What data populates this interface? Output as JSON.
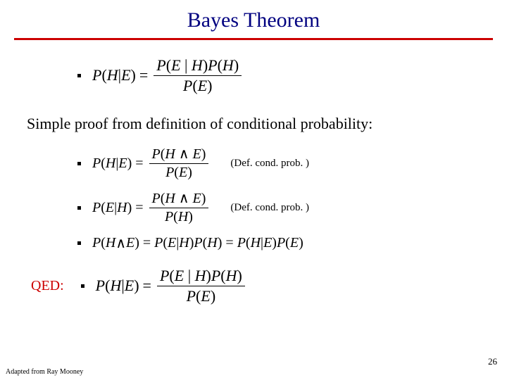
{
  "title": "Bayes Theorem",
  "colors": {
    "title": "#000080",
    "rule": "#cc0000",
    "qed": "#cc0000",
    "text": "#000000",
    "background": "#ffffff"
  },
  "typography": {
    "title_fontsize": 30,
    "body_fontsize": 22,
    "formula_fontsize_main": 22,
    "formula_fontsize_step": 20,
    "annotation_fontsize": 15,
    "footer_fontsize": 10,
    "pagenum_fontsize": 13,
    "font_family": "Times New Roman"
  },
  "formula_main": {
    "lhs_func": "P",
    "lhs_arg1": "H",
    "lhs_sep": " | ",
    "lhs_arg2": "E",
    "eq": "=",
    "num_f1": "P",
    "num_a1a": "E",
    "num_a1s": " | ",
    "num_a1b": "H",
    "num_f2": "P",
    "num_a2": "H",
    "den_f": "P",
    "den_a": "E"
  },
  "proof_text": "Simple proof from definition of conditional probability:",
  "step1": {
    "lhs_func": "P",
    "lhs_a": "H",
    "lhs_sep": " | ",
    "lhs_b": "E",
    "eq": "=",
    "num_f": "P",
    "num_a": "H",
    "num_op": " ∧ ",
    "num_b": "E",
    "den_f": "P",
    "den_a": "E",
    "annot": "(Def. cond. prob. )"
  },
  "step2": {
    "lhs_func": "P",
    "lhs_a": "E",
    "lhs_sep": " | ",
    "lhs_b": "H",
    "eq": "=",
    "num_f": "P",
    "num_a": "H",
    "num_op": " ∧ ",
    "num_b": "E",
    "den_f": "P",
    "den_a": "H",
    "annot": "(Def. cond. prob. )"
  },
  "step3": {
    "f1": "P",
    "a1a": "H",
    "a1op": " ∧ ",
    "a1b": "E",
    "eq1": "=",
    "f2": "P",
    "a2a": "E",
    "a2s": " | ",
    "a2b": "H",
    "f3": "P",
    "a3": "H",
    "eq2": "=",
    "f4": "P",
    "a4a": "H",
    "a4s": " | ",
    "a4b": "E",
    "f5": "P",
    "a5": "E"
  },
  "qed": {
    "label": "QED:",
    "lhs_func": "P",
    "lhs_a": "H",
    "lhs_sep": " | ",
    "lhs_b": "E",
    "eq": "=",
    "num_f1": "P",
    "num_a1a": "E",
    "num_a1s": " | ",
    "num_a1b": "H",
    "num_f2": "P",
    "num_a2": "H",
    "den_f": "P",
    "den_a": "E"
  },
  "footer": "Adapted from Ray Mooney",
  "page_number": "26"
}
